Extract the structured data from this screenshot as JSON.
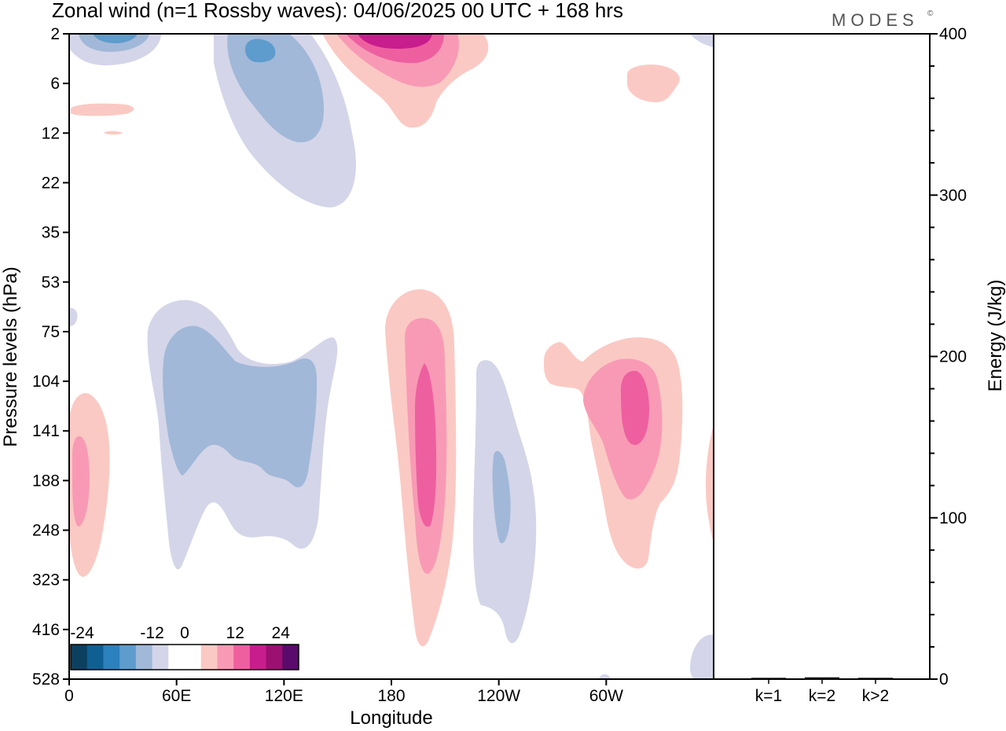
{
  "title": "Zonal wind (n=1 Rossby waves):  04/06/2025  00 UTC  + 168 hrs",
  "brand": "MODES",
  "brand_mark": "©",
  "chart_data": {
    "type": "heatmap",
    "title": "Zonal wind (n=1 Rossby waves):  04/06/2025  00 UTC  + 168 hrs",
    "xlabel": "Longitude",
    "ylabel": "Pressure levels (hPa)",
    "x_ticks": [
      "0",
      "60E",
      "120E",
      "180",
      "120W",
      "60W"
    ],
    "x_tick_lon": [
      0,
      60,
      120,
      180,
      240,
      300
    ],
    "xlim": [
      0,
      360
    ],
    "y_ticks": [
      "2",
      "6",
      "12",
      "22",
      "35",
      "53",
      "75",
      "104",
      "141",
      "188",
      "248",
      "323",
      "416",
      "528"
    ],
    "y_scale": "level index (log-pressure), top to bottom",
    "colorbar": {
      "labels": [
        "-24",
        "-12",
        "0",
        "12",
        "24"
      ],
      "colors": [
        "#0d3f5e",
        "#0f5f92",
        "#2c80bd",
        "#5d9ccc",
        "#a1b8d8",
        "#d4d5e9",
        "#ffffff",
        "#ffffff",
        "#fbc9c3",
        "#f89ab5",
        "#ee5fa0",
        "#c81d8c",
        "#9b1070",
        "#5a0a6a"
      ]
    },
    "features": [
      {
        "name": "neg-upper-a",
        "sign": "negative",
        "lon_range": [
          0,
          65
        ],
        "levels": [
          "2",
          "6"
        ],
        "peak": -15
      },
      {
        "name": "neg-upper-b",
        "sign": "negative",
        "lon_range": [
          85,
          160
        ],
        "levels": [
          "2",
          "22"
        ],
        "peak": -12
      },
      {
        "name": "pos-upper-a",
        "sign": "positive",
        "lon_range": [
          140,
          235
        ],
        "levels": [
          "2",
          "12"
        ],
        "peak": 18
      },
      {
        "name": "pos-upper-small",
        "sign": "positive",
        "lon_range": [
          310,
          340
        ],
        "levels": [
          "6",
          "8"
        ],
        "peak": 3
      },
      {
        "name": "pos-upper-tiny",
        "sign": "positive",
        "lon_range": [
          0,
          35
        ],
        "levels": [
          "9",
          "12"
        ],
        "peak": 3
      },
      {
        "name": "neg-mid-asia",
        "sign": "negative",
        "lon_range": [
          45,
          150
        ],
        "levels": [
          "53",
          "248"
        ],
        "peak": -9
      },
      {
        "name": "pos-dateline",
        "sign": "positive",
        "lon_range": [
          175,
          215
        ],
        "levels": [
          "53",
          "416"
        ],
        "peak": 18
      },
      {
        "name": "neg-east-pacific",
        "sign": "negative",
        "lon_range": [
          225,
          260
        ],
        "levels": [
          "104",
          "416"
        ],
        "peak": -9
      },
      {
        "name": "pos-atlantic",
        "sign": "positive",
        "lon_range": [
          265,
          345
        ],
        "levels": [
          "75",
          "323"
        ],
        "peak": 15
      },
      {
        "name": "pos-prime-meridian",
        "sign": "positive",
        "lon_range": [
          0,
          25
        ],
        "levels": [
          "104",
          "323"
        ],
        "peak": 12
      },
      {
        "name": "pos-right-edge",
        "sign": "positive",
        "lon_range": [
          355,
          360
        ],
        "levels": [
          "141",
          "248"
        ],
        "peak": 3
      },
      {
        "name": "neg-right-bottom",
        "sign": "negative",
        "lon_range": [
          348,
          360
        ],
        "levels": [
          "416",
          "528"
        ],
        "peak": -3
      }
    ],
    "energy_panel": {
      "ylabel": "Energy (J/kg)",
      "ylim": [
        0,
        400
      ],
      "y_ticks": [
        "0",
        "100",
        "200",
        "300",
        "400"
      ],
      "categories": [
        "k=1",
        "k=2",
        "k>2"
      ],
      "values": [
        0.3,
        0.6,
        0.3
      ]
    }
  }
}
